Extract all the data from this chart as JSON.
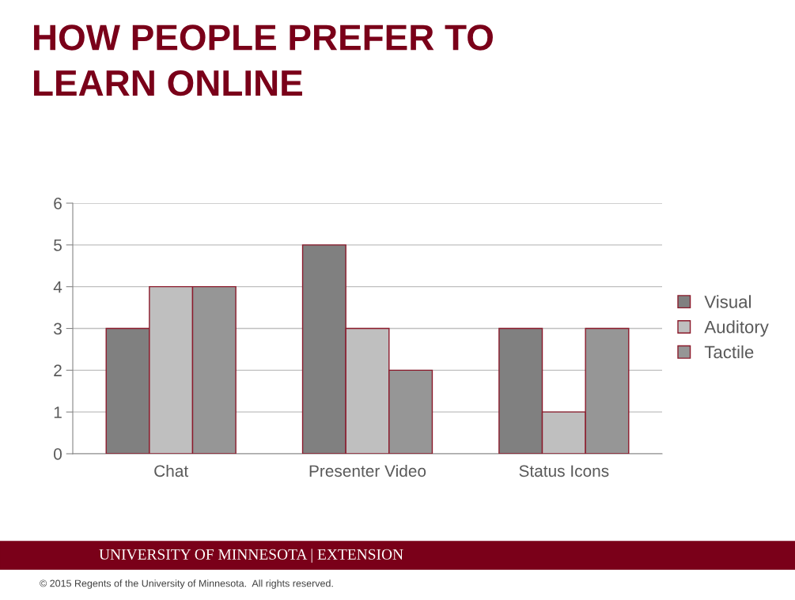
{
  "chart_data": {
    "type": "bar",
    "title": "HOW PEOPLE PREFER TO\nLEARN ONLINE",
    "categories": [
      "Chat",
      "Presenter Video",
      "Status Icons"
    ],
    "series": [
      {
        "name": "Visual",
        "color": "#808080",
        "values": [
          3,
          5,
          3
        ]
      },
      {
        "name": "Auditory",
        "color": "#bfbfbf",
        "values": [
          4,
          3,
          1
        ]
      },
      {
        "name": "Tactile",
        "color": "#969696",
        "values": [
          4,
          2,
          3
        ]
      }
    ],
    "ylim": [
      0,
      6
    ],
    "yticks": [
      0,
      1,
      2,
      3,
      4,
      5,
      6
    ],
    "grid": "y",
    "legend": "right",
    "annotations": [
      "UNIVERSITY OF MINNESOTA | EXTENSION",
      "© 2015 Regents of the University of Minnesota.  All rights reserved."
    ]
  }
}
